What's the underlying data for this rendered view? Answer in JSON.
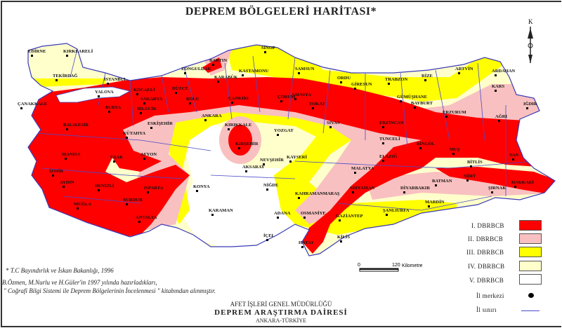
{
  "title": "DEPREM BÖLGELERİ HARİTASI*",
  "compass": {
    "north_label": "K",
    "icon": "north-arrow-icon"
  },
  "colors": {
    "zone1": "#ff0000",
    "zone2": "#f8c0c0",
    "zone3": "#ffff00",
    "zone4": "#ffffcc",
    "zone5": "#ffffff",
    "border": "#4a4acc"
  },
  "legend": {
    "zones": [
      {
        "label": "I. DBRBCB",
        "color": "#ff0000"
      },
      {
        "label": "II. DBRBCB",
        "color": "#f8c0c0"
      },
      {
        "label": "III. DBRBCB",
        "color": "#ffff00"
      },
      {
        "label": "IV. DBRBCB",
        "color": "#ffffcc"
      },
      {
        "label": "V. DBRBCB",
        "color": "#ffffff"
      }
    ],
    "city_center": "İl merkezi",
    "province_border": "İl sınırı"
  },
  "scale": {
    "start": "0",
    "end": "120",
    "unit": "Kilometre"
  },
  "notes": [
    "* T.C Bayındırlık ve İskan Bakanlığı, 1996",
    "B.Özmen, M.Nurlu ve H.Güler'in 1997 yılında hazırladıkları,",
    "\" Coğrafi Bilgi Sistemi ile Deprem Bölgelerinin İncelenmesi \" kitabından alınmıştır."
  ],
  "footer": {
    "line1": "AFET İŞLERİ GENEL MÜDÜRLÜĞÜ",
    "line2": "DEPREM ARAŞTIRMA DAİRESİ",
    "line3": "ANKARA-TÜRKİYE"
  },
  "cities": [
    "EDİRNE",
    "KIRKLARELİ",
    "TEKİRDAĞ",
    "İSTANBUL",
    "YALOVA",
    "KOCAELİ",
    "SAKARYA",
    "DÜZCE",
    "BOLU",
    "ZONGULDAK",
    "BARTIN",
    "KASTAMONU",
    "SİNOP",
    "KARABÜK",
    "ÇANKIRI",
    "ÇORUM",
    "SAMSUN",
    "AMASYA",
    "TOKAT",
    "ORDU",
    "GİRESUN",
    "TRABZON",
    "RİZE",
    "ARTVİN",
    "ARDAHAN",
    "KARS",
    "GÜMÜŞHANE",
    "BAYBURT",
    "ERZURUM",
    "IĞDIR",
    "AĞRI",
    "ERZİNCAN",
    "SİVAS",
    "YOZGAT",
    "KIRIKKALE",
    "ANKARA",
    "ESKİŞEHİR",
    "BİLECİK",
    "BURSA",
    "ÇANAKKALE",
    "BALIKESİR",
    "KÜTAHYA",
    "KIRŞEHİR",
    "NEVŞEHİR",
    "KAYSERİ",
    "AKSARAY",
    "NİĞDE",
    "KONYA",
    "KARAMAN",
    "MANİSA",
    "İZMİR",
    "UŞAK",
    "AFYON",
    "AYDIN",
    "DENİZLİ",
    "ISPARTA",
    "BURDUR",
    "MUĞLA",
    "ANTALYA",
    "İÇEL",
    "ADANA",
    "OSMANİYE",
    "HATAY",
    "KİLİS",
    "GAZİANTEP",
    "ŞANLIURFA",
    "KAHRAMANMARAŞ",
    "ADIYAMAN",
    "MALATYA",
    "ELAZIĞ",
    "TUNCELİ",
    "BİNGÖL",
    "MUŞ",
    "BİTLİS",
    "VAN",
    "SİİRT",
    "BATMAN",
    "DİYARBAKIR",
    "MARDİN",
    "ŞIRNAK",
    "HAKKARİ"
  ]
}
